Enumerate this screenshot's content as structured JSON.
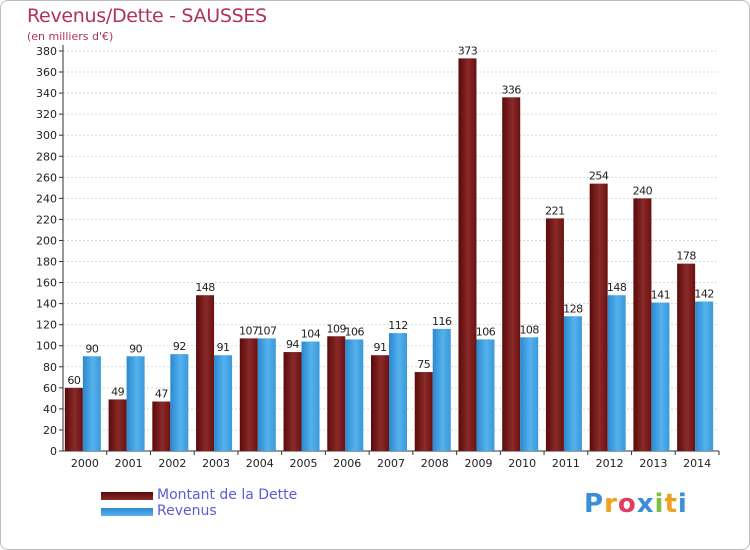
{
  "header": {
    "title": "Revenus/Dette - SAUSSES",
    "subtitle": "(en milliers d'€)"
  },
  "chart_data": {
    "type": "bar",
    "title": "Revenus/Dette - SAUSSES",
    "ylabel": "(en milliers d'€)",
    "xlabel": "",
    "ylim": [
      0,
      380
    ],
    "ytick_step": 20,
    "grid": true,
    "legend_position": "bottom-left",
    "categories": [
      "2000",
      "2001",
      "2002",
      "2003",
      "2004",
      "2005",
      "2006",
      "2007",
      "2008",
      "2009",
      "2010",
      "2011",
      "2012",
      "2013",
      "2014"
    ],
    "series": [
      {
        "name": "Montant de la Dette",
        "color": "#7a1a1a",
        "values": [
          60,
          49,
          47,
          148,
          107,
          94,
          109,
          91,
          75,
          373,
          336,
          221,
          254,
          240,
          178
        ]
      },
      {
        "name": "Revenus",
        "color": "#3fa0e0",
        "values": [
          90,
          90,
          92,
          91,
          107,
          104,
          106,
          112,
          116,
          106,
          108,
          128,
          148,
          141,
          142
        ]
      }
    ]
  },
  "logo": {
    "letters": [
      "P",
      "r",
      "o",
      "x",
      "i",
      "t",
      "i"
    ],
    "colors": [
      "#3a8fd8",
      "#f0a020",
      "#e04060",
      "#3a8fd8",
      "#80c040",
      "#f0a020",
      "#3a8fd8"
    ]
  }
}
